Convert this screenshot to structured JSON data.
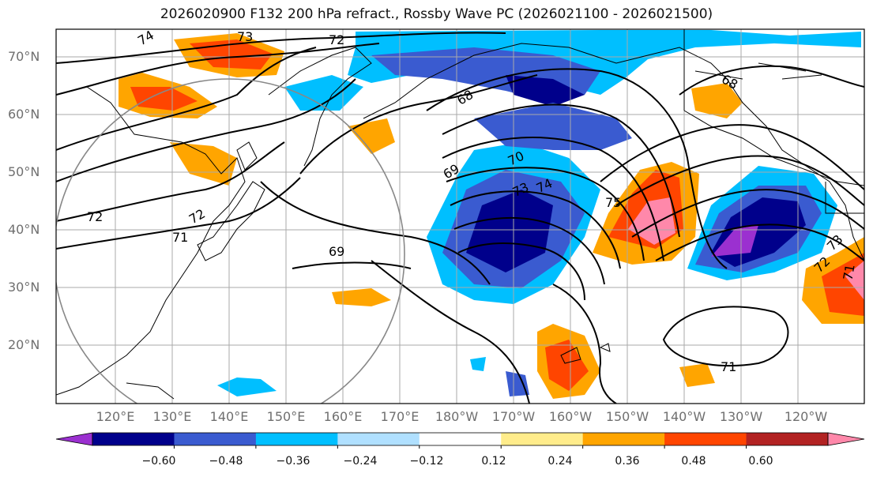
{
  "title": "2026020900 F132 200 hPa refract., Rossby Wave PC (2026021100 - 2026021500)",
  "lat_labels": [
    "70°N",
    "60°N",
    "50°N",
    "40°N",
    "30°N",
    "20°N"
  ],
  "lon_labels": [
    "120°E",
    "130°E",
    "140°E",
    "150°E",
    "160°E",
    "170°E",
    "180°W",
    "170°W",
    "160°W",
    "150°W",
    "140°W",
    "130°W",
    "120°W"
  ],
  "colorbar": {
    "ticks": [
      "−0.60",
      "−0.48",
      "−0.36",
      "−0.24",
      "−0.12",
      "0.12",
      "0.24",
      "0.36",
      "0.48",
      "0.60"
    ],
    "colors": [
      "#9b30d0",
      "#00008b",
      "#3a5bd0",
      "#00bfff",
      "#b0e0ff",
      "#ffffff",
      "#ffec8b",
      "#ffa500",
      "#ff4500",
      "#b22222",
      "#ff88aa"
    ]
  },
  "contour_labels": [
    "74",
    "73",
    "72",
    "72",
    "71",
    "68",
    "68",
    "69",
    "70",
    "73",
    "74",
    "75",
    "69",
    "72",
    "73",
    "71",
    "71",
    "72"
  ]
}
